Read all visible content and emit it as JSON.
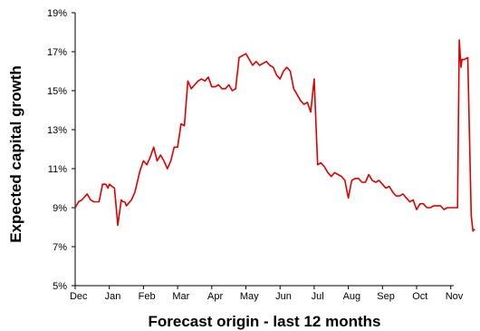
{
  "chart_data": {
    "type": "line",
    "title": "",
    "xlabel": "Forecast origin - last 12 months",
    "ylabel": "Expected capital growth",
    "ylim": [
      5,
      19
    ],
    "xlim": [
      0,
      12
    ],
    "y_ticks": [
      5,
      7,
      9,
      11,
      13,
      15,
      17,
      19
    ],
    "y_tick_labels": [
      "5%",
      "7%",
      "9%",
      "11%",
      "13%",
      "15%",
      "17%",
      "19%"
    ],
    "x_ticks": [
      0,
      1,
      2,
      3,
      4,
      5,
      6,
      7,
      8,
      9,
      10,
      11
    ],
    "x_tick_labels": [
      "Dec",
      "Jan",
      "Feb",
      "Mar",
      "Apr",
      "May",
      "Jun",
      "Jul",
      "Aug",
      "Sep",
      "Oct",
      "Nov"
    ],
    "grid": false,
    "legend": "none",
    "colors": {
      "series": "#e00000",
      "axis": "#000000"
    },
    "series": [
      {
        "x": [
          0.0,
          0.1,
          0.2,
          0.35,
          0.45,
          0.55,
          0.7,
          0.8,
          0.9,
          0.96,
          1.0,
          1.15,
          1.25,
          1.35,
          1.4,
          1.45,
          1.5,
          1.55,
          1.65,
          1.75,
          1.9,
          2.0,
          2.1,
          2.2,
          2.3,
          2.4,
          2.5,
          2.6,
          2.7,
          2.8,
          2.9,
          3.0,
          3.1,
          3.2,
          3.3,
          3.4,
          3.5,
          3.6,
          3.7,
          3.8,
          3.9,
          4.0,
          4.1,
          4.2,
          4.3,
          4.4,
          4.5,
          4.6,
          4.7,
          4.8,
          4.9,
          5.0,
          5.1,
          5.2,
          5.3,
          5.4,
          5.5,
          5.6,
          5.7,
          5.8,
          5.9,
          6.0,
          6.1,
          6.2,
          6.3,
          6.4,
          6.5,
          6.6,
          6.7,
          6.8,
          6.9,
          7.0,
          7.1,
          7.2,
          7.3,
          7.4,
          7.5,
          7.6,
          7.7,
          7.8,
          7.9,
          8.0,
          8.1,
          8.2,
          8.3,
          8.4,
          8.5,
          8.6,
          8.7,
          8.8,
          8.9,
          9.0,
          9.1,
          9.2,
          9.3,
          9.4,
          9.5,
          9.6,
          9.7,
          9.8,
          9.9,
          10.0,
          10.1,
          10.2,
          10.3,
          10.4,
          10.5,
          10.6,
          10.7,
          10.8,
          10.9,
          11.0,
          11.1,
          11.2,
          11.25,
          11.3,
          11.33,
          11.4,
          11.5,
          11.6,
          11.65,
          11.7
        ],
        "values": [
          9.0,
          9.3,
          9.4,
          9.7,
          9.4,
          9.3,
          9.3,
          10.2,
          10.2,
          10.0,
          10.2,
          10.0,
          8.1,
          9.4,
          9.3,
          9.3,
          9.1,
          9.2,
          9.4,
          9.8,
          10.9,
          11.4,
          11.2,
          11.6,
          12.1,
          11.4,
          11.7,
          11.4,
          11.0,
          11.4,
          12.1,
          12.1,
          13.3,
          13.2,
          15.5,
          15.1,
          15.3,
          15.5,
          15.6,
          15.5,
          15.7,
          15.2,
          15.2,
          15.3,
          15.1,
          15.1,
          15.3,
          15.0,
          15.1,
          16.7,
          16.8,
          16.9,
          16.6,
          16.3,
          16.5,
          16.3,
          16.4,
          16.5,
          16.3,
          16.2,
          15.8,
          15.6,
          16.0,
          16.2,
          16.0,
          15.1,
          14.8,
          14.5,
          14.3,
          14.4,
          13.9,
          15.6,
          11.2,
          11.3,
          11.1,
          10.8,
          10.6,
          10.8,
          10.7,
          10.6,
          10.4,
          9.5,
          10.4,
          10.5,
          10.5,
          10.3,
          10.3,
          10.7,
          10.4,
          10.3,
          10.4,
          10.2,
          10.0,
          10.1,
          9.8,
          9.6,
          9.6,
          9.7,
          9.5,
          9.3,
          9.4,
          8.9,
          9.2,
          9.2,
          9.0,
          9.0,
          9.1,
          9.1,
          9.1,
          8.9,
          9.0,
          9.0,
          9.0,
          9.0,
          17.6,
          16.2,
          16.6,
          16.6,
          16.7,
          8.6,
          7.8,
          7.9
        ]
      }
    ]
  }
}
